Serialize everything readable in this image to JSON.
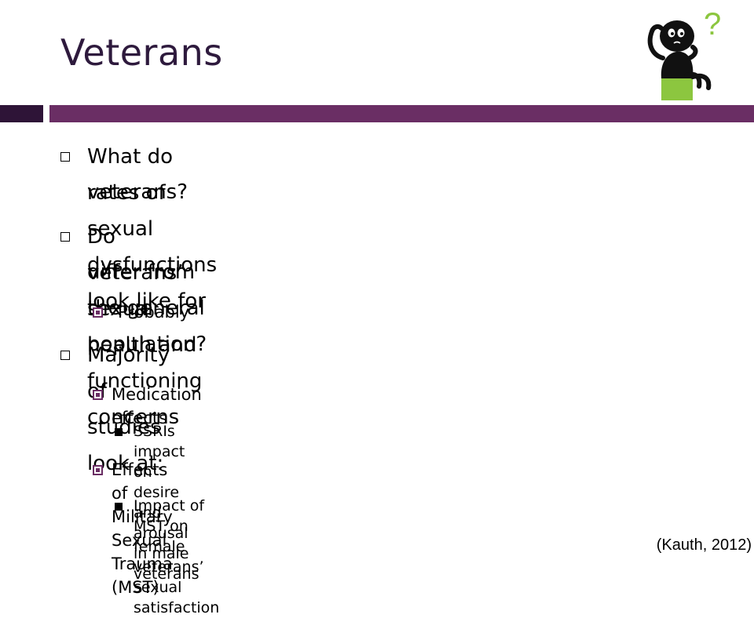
{
  "slide": {
    "title": "Veterans",
    "citation": "(Kauth, 2012)"
  },
  "bullets": {
    "b1_line1": "What do rates of sexual dysfunctions look like for",
    "b1_line2": "veterans?",
    "b2_line1": "Do veterans’ sexual health and functioning concerns",
    "b2_line2": "differ from the general population?",
    "b2_sub1": "Probably",
    "b3": "Majority of studies look at:",
    "b3_sub1": "Medication effects",
    "b3_sub1_detail": "SSRIs impact on desire and arousal in male veterans",
    "b3_sub2": "Effects of Military Sexual Trauma (MST)",
    "b3_sub2_detail": "Impact of MST on female veterans’ sexual satisfaction"
  },
  "clipart": {
    "icon": "thinking-person-icon",
    "question_mark": "?"
  },
  "colors": {
    "title": "#2e1a3d",
    "band_dark": "#2e1437",
    "band_accent": "#6a2e64",
    "clipart_green": "#8cc63f"
  }
}
